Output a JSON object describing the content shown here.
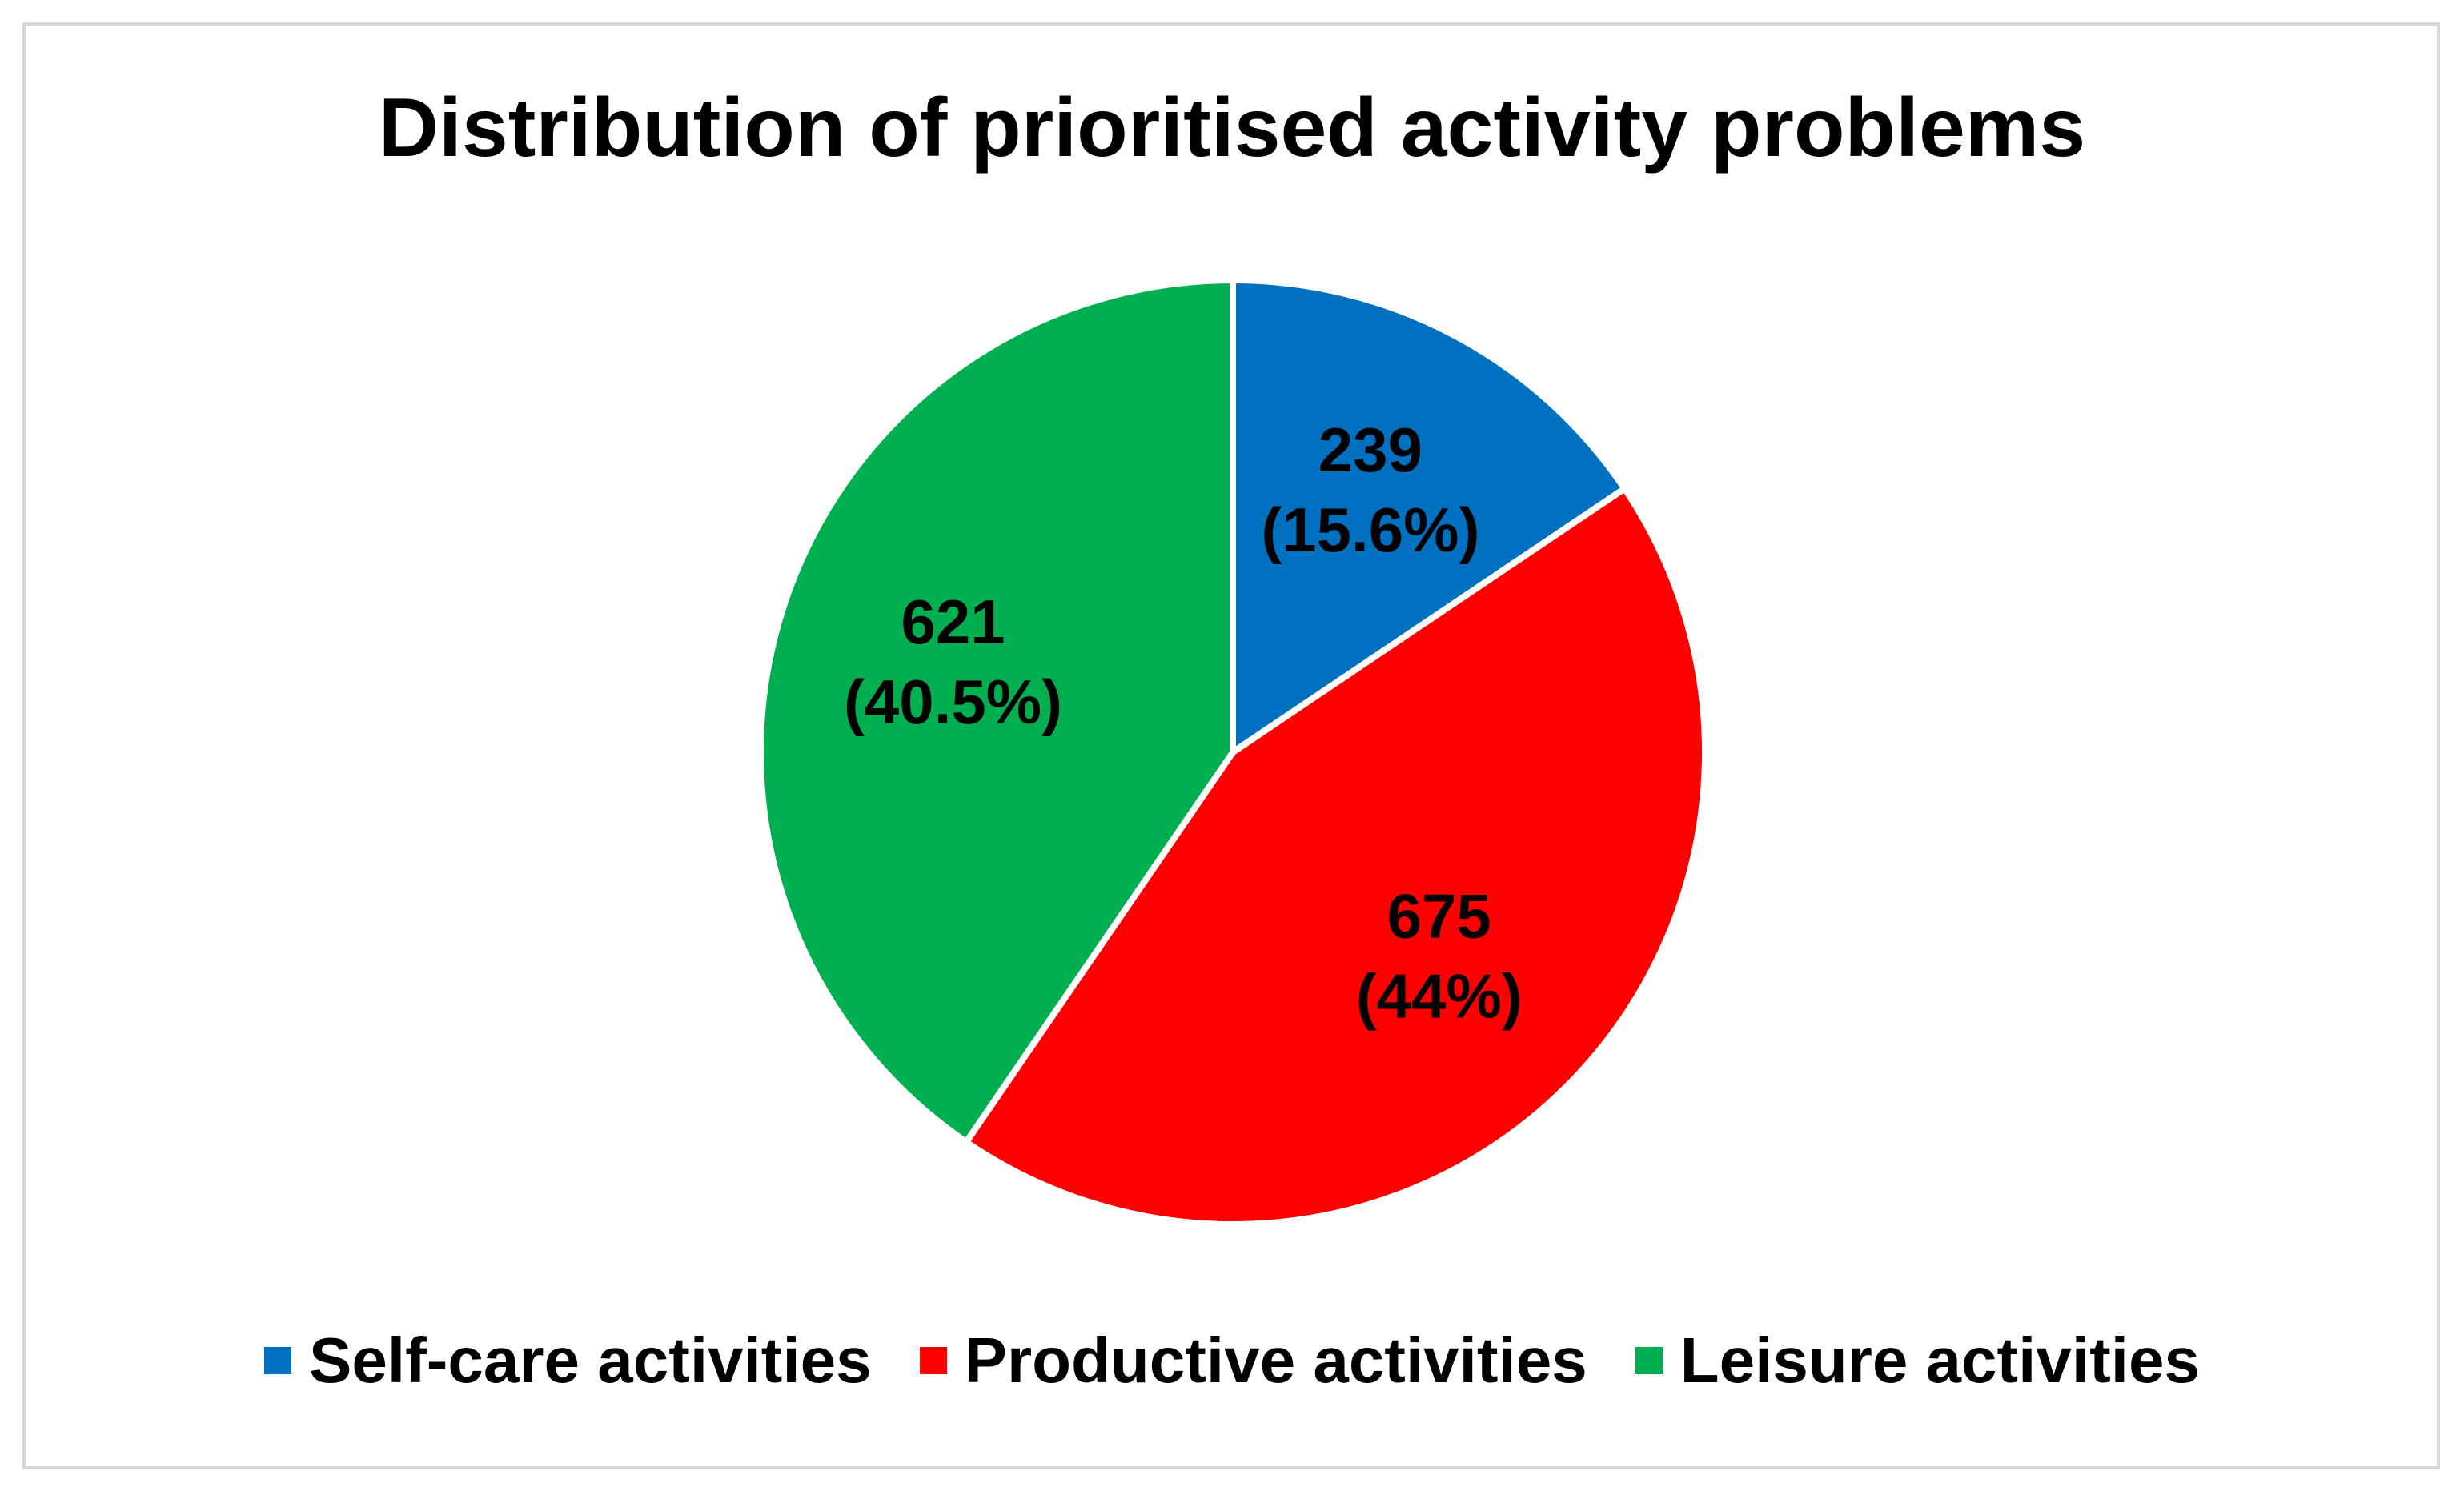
{
  "chart_data": {
    "type": "pie",
    "title": "Distribution of prioritised activity problems",
    "slices": [
      {
        "name": "Self-care activities",
        "value": 239,
        "percent_label": "(15.6%)",
        "color": "#0070C0"
      },
      {
        "name": "Productive activities",
        "value": 675,
        "percent_label": "(44%)",
        "color": "#FF0000"
      },
      {
        "name": "Leisure activities",
        "value": 621,
        "percent_label": "(40.5%)",
        "color": "#00B050"
      }
    ],
    "legend_position": "bottom",
    "start_angle": "12 o'clock",
    "direction": "clockwise",
    "slice_border_color": "#ffffff"
  }
}
